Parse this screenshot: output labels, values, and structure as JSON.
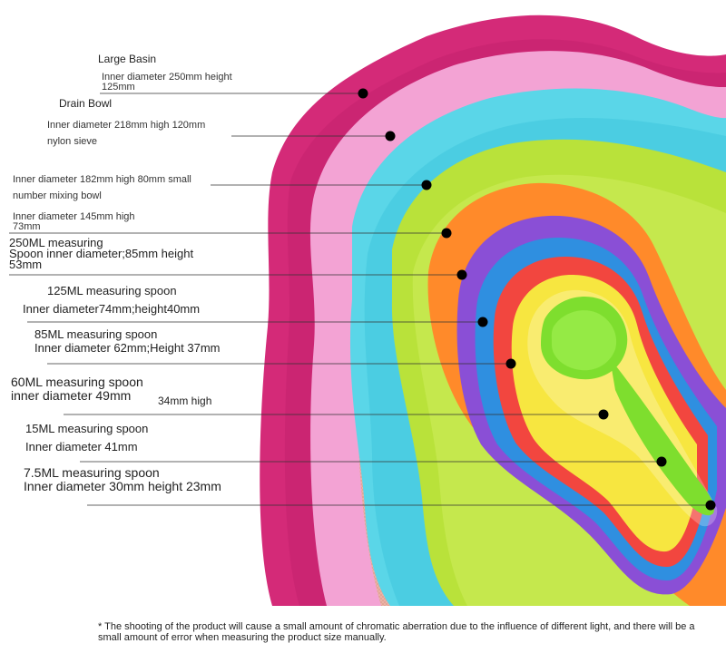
{
  "image": {
    "subject": "Nested rainbow-colored kitchen bowl and measuring spoon set",
    "colors": {
      "magenta_basin": "#d42a78",
      "pink_drain_bowl": "#f3a3d4",
      "cyan_mixing_bowl": "#5ad6e8",
      "lime_bowl": "#b9e23a",
      "orange_spoon": "#ff8a2a",
      "purple_spoon": "#8a4fd6",
      "blue_spoon": "#2f8fe0",
      "red_spoon": "#f2463f",
      "yellow_spoon": "#f7e640",
      "green_spoon": "#7ede2e",
      "sieve_mesh": "#e7a79a"
    },
    "annotation_dot_color": "#000000"
  },
  "labels": {
    "large_basin_title": "Large Basin",
    "large_basin_spec_1": "Inner diameter 250mm height",
    "large_basin_spec_2": "125mm",
    "drain_bowl_title": "Drain Bowl",
    "drain_bowl_spec": "Inner diameter 218mm high 120mm",
    "drain_bowl_note": "nylon sieve",
    "mixing_bowl_spec_1": "Inner diameter 182mm high 80mm small",
    "mixing_bowl_spec_2": "number mixing bowl",
    "bowl4_spec_1": "Inner diameter 145mm high",
    "bowl4_spec_2": "73mm",
    "spoon250_title": "250ML measuring",
    "spoon250_spec_1": "Spoon inner diameter;85mm height",
    "spoon250_spec_2": "53mm",
    "spoon125_title": "125ML measuring spoon",
    "spoon125_spec": "Inner diameter74mm;height40mm",
    "spoon85_title": "85ML measuring spoon",
    "spoon85_spec": "Inner diameter 62mm;Height 37mm",
    "spoon60_title": "60ML measuring spoon",
    "spoon60_spec": "inner diameter 49mm",
    "spoon60_height": "34mm high",
    "spoon15_title": "15ML measuring spoon",
    "spoon15_spec": "Inner diameter 41mm",
    "spoon7_title": "7.5ML measuring spoon",
    "spoon7_spec": "Inner diameter 30mm height 23mm"
  },
  "footnote": "* The shooting of the product will cause a small amount of chromatic aberration due to the influence of different light, and there will be a small amount of error when measuring the product size manually."
}
